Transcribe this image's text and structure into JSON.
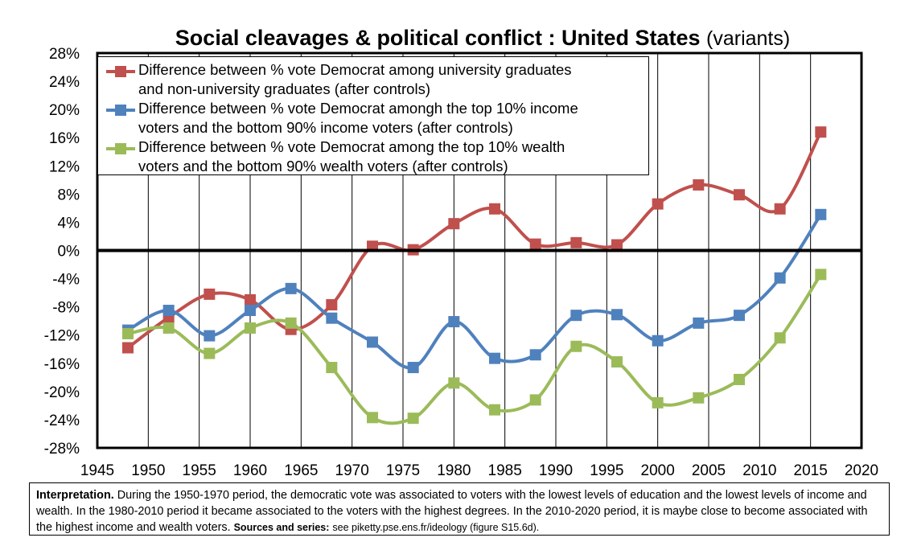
{
  "title": {
    "main": "Social cleavages & political conflict : United States",
    "sub": "(variants)"
  },
  "chart_data": {
    "type": "line",
    "title": "Social cleavages & political conflict : United States (variants)",
    "xlabel": "",
    "ylabel": "",
    "xlim": [
      1945,
      2020
    ],
    "ylim": [
      -28,
      28
    ],
    "x_ticks": [
      1945,
      1950,
      1955,
      1960,
      1965,
      1970,
      1975,
      1980,
      1985,
      1990,
      1995,
      2000,
      2005,
      2010,
      2015,
      2020
    ],
    "y_ticks": [
      28,
      24,
      20,
      16,
      12,
      8,
      4,
      0,
      -4,
      -8,
      -12,
      -16,
      -20,
      -24,
      -28
    ],
    "x_tick_labels": [
      "1945",
      "1950",
      "1955",
      "1960",
      "1965",
      "1970",
      "1975",
      "1980",
      "1985",
      "1990",
      "1995",
      "2000",
      "2005",
      "2010",
      "2015",
      "2020"
    ],
    "y_tick_labels": [
      "28%",
      "24%",
      "20%",
      "16%",
      "12%",
      "8%",
      "4%",
      "0%",
      "-4%",
      "-8%",
      "-12%",
      "-16%",
      "-20%",
      "-24%",
      "-28%"
    ],
    "grid": "vertical",
    "legend_position": "top-left",
    "series": [
      {
        "name": "Difference between % vote Democrat among university graduates and non-university graduates (after controls)",
        "color": "#c0504d",
        "marker": "square",
        "x": [
          1948,
          1952,
          1956,
          1960,
          1964,
          1968,
          1972,
          1976,
          1980,
          1984,
          1988,
          1992,
          1996,
          2000,
          2004,
          2008,
          2012,
          2016
        ],
        "values": [
          -13.8,
          -9.5,
          -6.2,
          -7.0,
          -11.2,
          -7.7,
          0.6,
          0.1,
          3.8,
          5.9,
          0.9,
          1.1,
          0.8,
          6.6,
          9.3,
          7.9,
          5.9,
          16.8
        ]
      },
      {
        "name": "Difference between % vote Democrat amongh the top 10% income voters and the bottom 90% income voters (after controls)",
        "color": "#4f81bd",
        "marker": "square",
        "x": [
          1948,
          1952,
          1956,
          1960,
          1964,
          1968,
          1972,
          1976,
          1980,
          1984,
          1988,
          1992,
          1996,
          2000,
          2004,
          2008,
          2012,
          2016
        ],
        "values": [
          -11.3,
          -8.5,
          -12.1,
          -8.5,
          -5.4,
          -9.6,
          -13.0,
          -16.6,
          -10.1,
          -15.3,
          -14.8,
          -9.2,
          -9.1,
          -12.8,
          -10.3,
          -9.2,
          -3.9,
          5.1
        ]
      },
      {
        "name": "Difference between % vote Democrat among the top 10% wealth voters and the bottom 90% wealth voters (after controls)",
        "color": "#9bbb59",
        "marker": "square",
        "x": [
          1948,
          1952,
          1956,
          1960,
          1964,
          1968,
          1972,
          1976,
          1980,
          1984,
          1988,
          1992,
          1996,
          2000,
          2004,
          2008,
          2012,
          2016
        ],
        "values": [
          -11.8,
          -11.0,
          -14.6,
          -11.0,
          -10.3,
          -16.6,
          -23.7,
          -23.8,
          -18.8,
          -22.6,
          -21.2,
          -13.6,
          -15.8,
          -21.6,
          -20.9,
          -18.3,
          -12.4,
          -3.4
        ]
      }
    ]
  },
  "legend": {
    "entries": [
      {
        "line1": "Difference between % vote Democrat among university graduates",
        "line2": "and non-university graduates (after controls)",
        "color": "#c0504d"
      },
      {
        "line1": "Difference between % vote Democrat amongh the top 10% income",
        "line2": "voters and the bottom 90% income voters (after controls)",
        "color": "#4f81bd"
      },
      {
        "line1": "Difference between % vote Democrat among the top 10% wealth",
        "line2": "voters and the bottom 90% wealth voters (after controls)",
        "color": "#9bbb59"
      }
    ]
  },
  "note": {
    "label": "Interpretation.",
    "text": "During the 1950-1970 period, the democratic vote was associated to voters with the lowest levels of education and the lowest levels of income and wealth. In the 1980-2010 period it became associated to the voters with the highest degrees. In the 2010-2020 period, it is maybe close to become associated with the highest income and wealth voters.",
    "sources_label": "Sources and series:",
    "sources_text": "see piketty.pse.ens.fr/ideology (figure S15.6d)."
  }
}
